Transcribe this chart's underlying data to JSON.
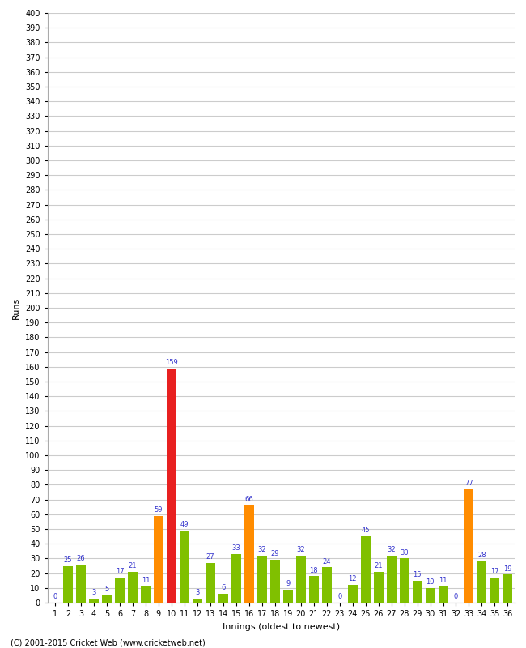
{
  "xlabel": "Innings (oldest to newest)",
  "ylabel": "Runs",
  "innings": [
    1,
    2,
    3,
    4,
    5,
    6,
    7,
    8,
    9,
    10,
    11,
    12,
    13,
    14,
    15,
    16,
    17,
    18,
    19,
    20,
    21,
    22,
    23,
    24,
    25,
    26,
    27,
    28,
    29,
    30,
    31,
    32,
    33,
    34,
    35,
    36
  ],
  "values": [
    0,
    25,
    26,
    3,
    5,
    17,
    21,
    11,
    59,
    159,
    49,
    3,
    27,
    6,
    33,
    66,
    32,
    29,
    9,
    32,
    18,
    24,
    0,
    12,
    45,
    21,
    32,
    30,
    15,
    10,
    11,
    0,
    77,
    28,
    17,
    19
  ],
  "colors": [
    "#80c000",
    "#80c000",
    "#80c000",
    "#80c000",
    "#80c000",
    "#80c000",
    "#80c000",
    "#80c000",
    "#ff8c00",
    "#e82020",
    "#80c000",
    "#80c000",
    "#80c000",
    "#80c000",
    "#80c000",
    "#ff8c00",
    "#80c000",
    "#80c000",
    "#80c000",
    "#80c000",
    "#80c000",
    "#80c000",
    "#80c000",
    "#80c000",
    "#80c000",
    "#80c000",
    "#80c000",
    "#80c000",
    "#80c000",
    "#80c000",
    "#80c000",
    "#80c000",
    "#ff8c00",
    "#80c000",
    "#80c000",
    "#80c000"
  ],
  "ylim": [
    0,
    400
  ],
  "yticks": [
    0,
    10,
    20,
    30,
    40,
    50,
    60,
    70,
    80,
    90,
    100,
    110,
    120,
    130,
    140,
    150,
    160,
    170,
    180,
    190,
    200,
    210,
    220,
    230,
    240,
    250,
    260,
    270,
    280,
    290,
    300,
    310,
    320,
    330,
    340,
    350,
    360,
    370,
    380,
    390,
    400
  ],
  "background_color": "#ffffff",
  "grid_color": "#cccccc",
  "label_color": "#3333cc",
  "label_fontsize": 6,
  "tick_fontsize": 7,
  "ylabel_fontsize": 8,
  "xlabel_fontsize": 8,
  "footer": "(C) 2001-2015 Cricket Web (www.cricketweb.net)",
  "footer_fontsize": 7
}
